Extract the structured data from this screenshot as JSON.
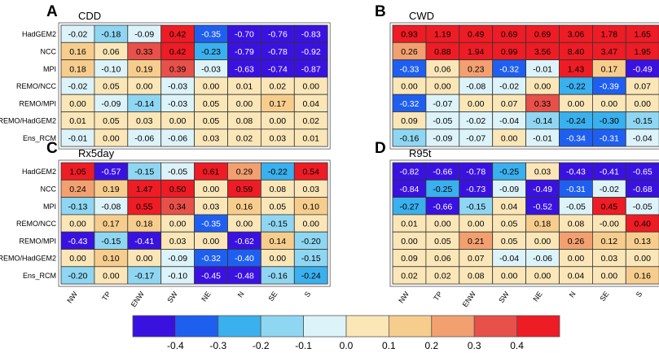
{
  "figure": {
    "rows": [
      "HadGEM2",
      "NCC",
      "MPI",
      "REMO/NCC",
      "REMO/MPI",
      "REMO/HadGEM2",
      "Ens_RCM"
    ],
    "columns": [
      "NW",
      "TP",
      "ENW",
      "SW",
      "NE",
      "N",
      "SE",
      "S"
    ]
  },
  "colorbar": {
    "tick_labels": [
      "-0.4",
      "-0.3",
      "-0.2",
      "-0.1",
      "0.0",
      "0.1",
      "0.2",
      "0.3",
      "0.4"
    ],
    "bounds": [
      -0.4,
      -0.3,
      -0.2,
      -0.1,
      0.0,
      0.1,
      0.2,
      0.3,
      0.4
    ],
    "colors": [
      "#3a12e0",
      "#1f5ff0",
      "#3ab0ee",
      "#8fd6f2",
      "#ddf3fa",
      "#fbe6b8",
      "#f7cd8e",
      "#f3a070",
      "#e8504a",
      "#ee1c25"
    ]
  },
  "chart_data": [
    {
      "type": "heatmap",
      "panel_letter": "A",
      "title": "CDD",
      "rows": [
        "HadGEM2",
        "NCC",
        "MPI",
        "REMO/NCC",
        "REMO/MPI",
        "REMO/HadGEM2",
        "Ens_RCM"
      ],
      "columns": [
        "NW",
        "TP",
        "ENW",
        "SW",
        "NE",
        "N",
        "SE",
        "S"
      ],
      "values": [
        [
          -0.02,
          -0.18,
          -0.09,
          0.42,
          -0.35,
          -0.7,
          -0.76,
          -0.83
        ],
        [
          0.16,
          0.06,
          0.33,
          0.42,
          -0.23,
          -0.79,
          -0.78,
          -0.92
        ],
        [
          0.18,
          -0.1,
          0.19,
          0.39,
          -0.03,
          -0.63,
          -0.74,
          -0.87
        ],
        [
          -0.02,
          0.05,
          0.0,
          -0.03,
          0.0,
          0.01,
          0.02,
          0.0
        ],
        [
          0.0,
          -0.09,
          -0.14,
          -0.03,
          0.05,
          0.0,
          0.17,
          0.04
        ],
        [
          0.01,
          0.05,
          0.03,
          0.0,
          0.05,
          0.08,
          0.0,
          0.02
        ],
        [
          -0.01,
          0.0,
          -0.06,
          -0.06,
          0.03,
          0.02,
          0.03,
          0.01
        ]
      ],
      "labels": [
        [
          "-0.02",
          "-0.18",
          "-0.09",
          "0.42",
          "-0.35",
          "-0.70",
          "-0.76",
          "-0.83"
        ],
        [
          "0.16",
          "0.06",
          "0.33",
          "0.42",
          "-0.23",
          "-0.79",
          "-0.78",
          "-0.92"
        ],
        [
          "0.18",
          "-0.10",
          "0.19",
          "0.39",
          "-0.03",
          "-0.63",
          "-0.74",
          "-0.87"
        ],
        [
          "-0.02",
          "0.05",
          "0.00",
          "-0.03",
          "0.00",
          "0.01",
          "0.02",
          "0.00"
        ],
        [
          "0.00",
          "-0.09",
          "-0.14",
          "-0.03",
          "0.05",
          "0.00",
          "0.17",
          "0.04"
        ],
        [
          "0.01",
          "0.05",
          "0.03",
          "0.00",
          "0.05",
          "0.08",
          "0.00",
          "0.02"
        ],
        [
          "-0.01",
          "0.00",
          "-0.06",
          "-0.06",
          "0.03",
          "0.02",
          "0.03",
          "0.01"
        ]
      ]
    },
    {
      "type": "heatmap",
      "panel_letter": "B",
      "title": "CWD",
      "rows": [
        "HadGEM2",
        "NCC",
        "MPI",
        "REMO/NCC",
        "REMO/MPI",
        "REMO/HadGEM2",
        "Ens_RCM"
      ],
      "columns": [
        "NW",
        "TP",
        "ENW",
        "SW",
        "NE",
        "N",
        "SE",
        "S"
      ],
      "values": [
        [
          0.93,
          1.19,
          0.49,
          0.69,
          0.69,
          3.06,
          1.78,
          1.65
        ],
        [
          0.26,
          0.88,
          1.94,
          0.99,
          3.56,
          8.4,
          3.47,
          1.95
        ],
        [
          -0.33,
          0.06,
          0.23,
          -0.32,
          -0.01,
          1.43,
          0.17,
          -0.49
        ],
        [
          0.0,
          0.0,
          -0.08,
          -0.02,
          0.0,
          -0.22,
          -0.39,
          0.07
        ],
        [
          -0.32,
          -0.07,
          0.0,
          0.07,
          0.33,
          0.0,
          0.0,
          0.0
        ],
        [
          0.09,
          -0.05,
          -0.02,
          -0.04,
          -0.14,
          -0.24,
          -0.3,
          -0.15
        ],
        [
          -0.16,
          -0.09,
          -0.07,
          0.0,
          -0.01,
          -0.34,
          -0.31,
          -0.04
        ]
      ],
      "labels": [
        [
          "0.93",
          "1.19",
          "0.49",
          "0.69",
          "0.69",
          "3.06",
          "1.78",
          "1.65"
        ],
        [
          "0.26",
          "0.88",
          "1.94",
          "0.99",
          "3.56",
          "8.40",
          "3.47",
          "1.95"
        ],
        [
          "-0.33",
          "0.06",
          "0.23",
          "-0.32",
          "-0.01",
          "1.43",
          "0.17",
          "-0.49"
        ],
        [
          "0.00",
          "0.00",
          "-0.08",
          "-0.02",
          "0.00",
          "-0.22",
          "-0.39",
          "0.07"
        ],
        [
          "-0.32",
          "-0.07",
          "0.00",
          "0.07",
          "0.33",
          "0.00",
          "0.00",
          "0.00"
        ],
        [
          "0.09",
          "-0.05",
          "-0.02",
          "-0.04",
          "-0.14",
          "-0.24",
          "-0.30",
          "-0.15"
        ],
        [
          "-0.16",
          "-0.09",
          "-0.07",
          "0.00",
          "-0.01",
          "-0.34",
          "-0.31",
          "-0.04"
        ]
      ]
    },
    {
      "type": "heatmap",
      "panel_letter": "C",
      "title": "Rx5day",
      "rows": [
        "HadGEM2",
        "NCC",
        "MPI",
        "REMO/NCC",
        "REMO/MPI",
        "REMO/HadGEM2",
        "Ens_RCM"
      ],
      "columns": [
        "NW",
        "TP",
        "ENW",
        "SW",
        "NE",
        "N",
        "SE",
        "S"
      ],
      "values": [
        [
          1.05,
          -0.57,
          -0.15,
          -0.05,
          0.61,
          0.29,
          -0.22,
          0.54
        ],
        [
          0.24,
          0.19,
          1.47,
          0.5,
          0.0,
          0.59,
          0.08,
          0.03
        ],
        [
          -0.13,
          -0.08,
          0.55,
          0.34,
          0.03,
          0.16,
          0.05,
          0.1
        ],
        [
          0.0,
          0.17,
          0.18,
          0.0,
          -0.35,
          0.0,
          -0.15,
          0.0
        ],
        [
          -0.43,
          -0.15,
          -0.41,
          0.03,
          0.0,
          -0.62,
          0.14,
          -0.2
        ],
        [
          0.0,
          0.1,
          0.0,
          -0.09,
          -0.32,
          -0.4,
          0.0,
          -0.15
        ],
        [
          -0.2,
          0.0,
          -0.17,
          -0.1,
          -0.45,
          -0.48,
          -0.16,
          -0.24
        ]
      ],
      "labels": [
        [
          "1.05",
          "-0.57",
          "-0.15",
          "-0.05",
          "0.61",
          "0.29",
          "-0.22",
          "0.54"
        ],
        [
          "0.24",
          "0.19",
          "1.47",
          "0.50",
          "0.00",
          "0.59",
          "0.08",
          "0.03"
        ],
        [
          "-0.13",
          "-0.08",
          "0.55",
          "0.34",
          "0.03",
          "0.16",
          "0.05",
          "0.10"
        ],
        [
          "0.00",
          "0.17",
          "0.18",
          "0.00",
          "-0.35",
          "0.00",
          "-0.15",
          "0.00"
        ],
        [
          "-0.43",
          "-0.15",
          "-0.41",
          "0.03",
          "0.00",
          "-0.62",
          "0.14",
          "-0.20"
        ],
        [
          "0.00",
          "0.10",
          "0.00",
          "-0.09",
          "-0.32",
          "-0.40",
          "0.00",
          "-0.15"
        ],
        [
          "-0.20",
          "0.00",
          "-0.17",
          "-0.10",
          "-0.45",
          "-0.48",
          "-0.16",
          "-0.24"
        ]
      ]
    },
    {
      "type": "heatmap",
      "panel_letter": "D",
      "title": "R95t",
      "rows": [
        "HadGEM2",
        "NCC",
        "MPI",
        "REMO/NCC",
        "REMO/MPI",
        "REMO/HadGEM2",
        "Ens_RCM"
      ],
      "columns": [
        "NW",
        "TP",
        "ENW",
        "SW",
        "NE",
        "N",
        "SE",
        "S"
      ],
      "values": [
        [
          -0.82,
          -0.66,
          -0.78,
          -0.25,
          0.03,
          -0.43,
          -0.41,
          -0.65
        ],
        [
          -0.84,
          -0.25,
          -0.73,
          -0.09,
          -0.49,
          -0.31,
          -0.02,
          -0.68
        ],
        [
          -0.27,
          -0.66,
          -0.15,
          0.04,
          -0.52,
          -0.05,
          0.45,
          -0.05
        ],
        [
          0.01,
          0.0,
          0.0,
          0.05,
          0.18,
          0.08,
          -0.0,
          0.4
        ],
        [
          0.0,
          0.05,
          0.21,
          0.05,
          0.0,
          0.26,
          0.12,
          0.13
        ],
        [
          0.09,
          0.06,
          0.07,
          -0.04,
          -0.06,
          0.0,
          0.03,
          0.0
        ],
        [
          0.02,
          0.02,
          0.08,
          0.0,
          0.0,
          0.04,
          0.0,
          0.16
        ]
      ],
      "labels": [
        [
          "-0.82",
          "-0.66",
          "-0.78",
          "-0.25",
          "0.03",
          "-0.43",
          "-0.41",
          "-0.65"
        ],
        [
          "-0.84",
          "-0.25",
          "-0.73",
          "-0.09",
          "-0.49",
          "-0.31",
          "-0.02",
          "-0.68"
        ],
        [
          "-0.27",
          "-0.66",
          "-0.15",
          "0.04",
          "-0.52",
          "-0.05",
          "0.45",
          "-0.05"
        ],
        [
          "0.01",
          "0.00",
          "0.00",
          "0.05",
          "0.18",
          "0.08",
          "-0.00",
          "0.40"
        ],
        [
          "0.00",
          "0.05",
          "0.21",
          "0.05",
          "0.00",
          "0.26",
          "0.12",
          "0.13"
        ],
        [
          "0.09",
          "0.06",
          "0.07",
          "-0.04",
          "-0.06",
          "0.00",
          "0.03",
          "0.00"
        ],
        [
          "0.02",
          "0.02",
          "0.08",
          "0.00",
          "0.00",
          "0.04",
          "0.00",
          "0.16"
        ]
      ]
    }
  ]
}
